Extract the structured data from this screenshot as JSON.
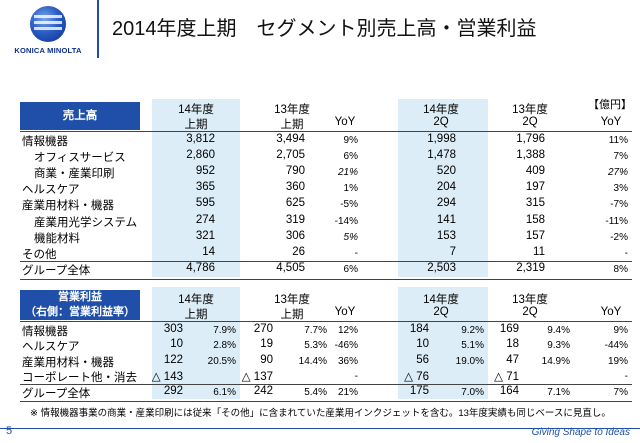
{
  "logo": {
    "text": "KONICA MINOLTA"
  },
  "title": "2014年度上期　セグメント別売上高・営業利益",
  "unit": "【億円】",
  "sales": {
    "header_label": "売上高",
    "col_headers": [
      [
        "14年度",
        "上期"
      ],
      [
        "13年度",
        "上期"
      ],
      [
        "",
        "YoY"
      ],
      [
        "14年度",
        "2Q"
      ],
      [
        "13年度",
        "2Q"
      ],
      [
        "",
        "YoY"
      ]
    ],
    "rows": [
      {
        "label": "情報機器",
        "indent": 0,
        "v": [
          "3,812",
          "3,494",
          "9%",
          "1,998",
          "1,796",
          "11%"
        ],
        "it": [
          false,
          false
        ]
      },
      {
        "label": "オフィスサービス",
        "indent": 1,
        "v": [
          "2,860",
          "2,705",
          "6%",
          "1,478",
          "1,388",
          "7%"
        ],
        "it": [
          false,
          false
        ]
      },
      {
        "label": "商業・産業印刷",
        "indent": 1,
        "v": [
          "952",
          "790",
          "21%",
          "520",
          "409",
          "27%"
        ],
        "it": [
          true,
          true
        ]
      },
      {
        "label": "ヘルスケア",
        "indent": 0,
        "v": [
          "365",
          "360",
          "1%",
          "204",
          "197",
          "3%"
        ],
        "it": [
          false,
          false
        ]
      },
      {
        "label": "産業用材料・機器",
        "indent": 0,
        "v": [
          "595",
          "625",
          "-5%",
          "294",
          "315",
          "-7%"
        ],
        "it": [
          false,
          false
        ]
      },
      {
        "label": "産業用光学システム",
        "indent": 1,
        "v": [
          "274",
          "319",
          "-14%",
          "141",
          "158",
          "-11%"
        ],
        "it": [
          false,
          false
        ]
      },
      {
        "label": "機能材料",
        "indent": 1,
        "v": [
          "321",
          "306",
          "5%",
          "153",
          "157",
          "-2%"
        ],
        "it": [
          true,
          false
        ]
      },
      {
        "label": "その他",
        "indent": 0,
        "v": [
          "14",
          "26",
          "-",
          "7",
          "11",
          "-"
        ],
        "it": [
          false,
          false
        ]
      },
      {
        "label": "グループ全体",
        "indent": 0,
        "v": [
          "4,786",
          "4,505",
          "6%",
          "2,503",
          "2,319",
          "8%"
        ],
        "it": [
          false,
          false
        ]
      }
    ]
  },
  "op": {
    "header_label_1": "営業利益",
    "header_label_2": "（右側：営業利益率）",
    "col_headers": [
      [
        "14年度",
        "上期"
      ],
      [
        "13年度",
        "上期"
      ],
      [
        "",
        "YoY"
      ],
      [
        "14年度",
        "2Q"
      ],
      [
        "13年度",
        "2Q"
      ],
      [
        "",
        "YoY"
      ]
    ],
    "rows": [
      {
        "label": "情報機器",
        "v": [
          "303",
          "7.9%",
          "270",
          "7.7%",
          "12%",
          "184",
          "9.2%",
          "169",
          "9.4%",
          "9%"
        ]
      },
      {
        "label": "ヘルスケア",
        "v": [
          "10",
          "2.8%",
          "19",
          "5.3%",
          "-46%",
          "10",
          "5.1%",
          "18",
          "9.3%",
          "-44%"
        ]
      },
      {
        "label": "産業用材料・機器",
        "v": [
          "122",
          "20.5%",
          "90",
          "14.4%",
          "36%",
          "56",
          "19.0%",
          "47",
          "14.9%",
          "19%"
        ]
      },
      {
        "label": "コーポレート他・消去",
        "v": [
          "△ 143",
          "",
          "△ 137",
          "",
          "-",
          "△ 76",
          "",
          "△ 71",
          "",
          "-"
        ]
      },
      {
        "label": "グループ全体",
        "v": [
          "292",
          "6.1%",
          "242",
          "5.4%",
          "21%",
          "175",
          "7.0%",
          "164",
          "7.1%",
          "7%"
        ]
      }
    ]
  },
  "footnote": "※ 情報機器事業の商業・産業印刷には従来「その他」に含まれていた産業用インクジェットを含む。13年度実績も同じベースに見直し。",
  "page_number": "5",
  "tagline": "Giving Shape to Ideas"
}
